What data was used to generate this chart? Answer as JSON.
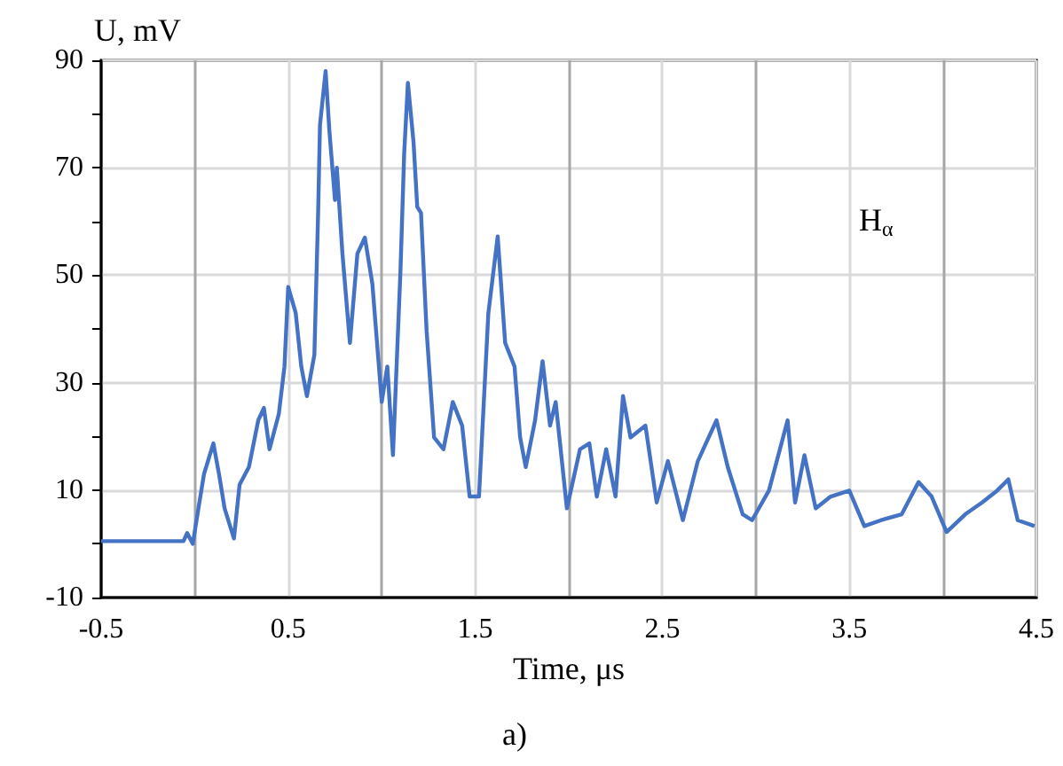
{
  "chart_data": {
    "type": "line",
    "xlabel": "Time, μs",
    "ylabel": "U, mV",
    "annotations": [
      "H$_{α}$",
      "a)"
    ],
    "xlim": [
      -0.5,
      4.5
    ],
    "xticks": [
      -0.5,
      {
        "value": 0,
        "label": null
      },
      0.5,
      {
        "value": 1,
        "label": null
      },
      1.5,
      {
        "value": 2,
        "label": null
      },
      2.5,
      {
        "value": 3,
        "label": null
      },
      3.5,
      {
        "value": 4,
        "label": null
      },
      4.5
    ],
    "ylim": [
      -10,
      90
    ],
    "yticks": [
      -10,
      {
        "value": 0,
        "label": null
      },
      10,
      {
        "value": 20,
        "label": null
      },
      30,
      {
        "value": 40,
        "label": null
      },
      50,
      {
        "value": 60,
        "label": null
      },
      70,
      {
        "value": 80,
        "label": null
      },
      90
    ],
    "grid": true,
    "marker": "none",
    "line_style": "solid",
    "series": [
      {
        "color": "#4472c4",
        "x": [
          -0.5,
          -0.06,
          -0.04,
          -0.01,
          0.02,
          0.05,
          0.1,
          0.13,
          0.16,
          0.21,
          0.24,
          0.29,
          0.34,
          0.37,
          0.4,
          0.45,
          0.48,
          0.5,
          0.54,
          0.57,
          0.6,
          0.64,
          0.66,
          0.67,
          0.7,
          0.72,
          0.75,
          0.76,
          0.79,
          0.83,
          0.87,
          0.91,
          0.95,
          1.0,
          1.03,
          1.06,
          1.1,
          1.12,
          1.14,
          1.17,
          1.19,
          1.21,
          1.24,
          1.28,
          1.33,
          1.38,
          1.43,
          1.47,
          1.52,
          1.57,
          1.62,
          1.66,
          1.71,
          1.74,
          1.77,
          1.82,
          1.86,
          1.9,
          1.93,
          1.99,
          2.06,
          2.11,
          2.15,
          2.2,
          2.25,
          2.29,
          2.33,
          2.41,
          2.47,
          2.53,
          2.61,
          2.69,
          2.79,
          2.85,
          2.93,
          2.98,
          3.07,
          3.17,
          3.21,
          3.26,
          3.32,
          3.4,
          3.5,
          3.58,
          3.67,
          3.78,
          3.87,
          3.94,
          4.02,
          4.12,
          4.21,
          4.29,
          4.35,
          4.4,
          4.49
        ],
        "values": [
          0.5,
          0.5,
          2,
          0,
          6.6,
          13,
          18.7,
          13,
          6.6,
          1,
          11,
          14.3,
          23,
          25.3,
          17.6,
          24.2,
          33,
          47.8,
          43,
          33,
          27.5,
          35.2,
          61.6,
          78,
          88,
          77,
          64,
          70,
          54,
          37.4,
          54,
          57,
          48.4,
          26.4,
          33,
          16.5,
          50.6,
          72.6,
          85.8,
          74.8,
          62.7,
          61.6,
          39.6,
          19.8,
          17.6,
          26.4,
          22,
          8.8,
          8.8,
          42.9,
          57.2,
          37.4,
          33,
          19.8,
          14.3,
          23,
          34,
          22,
          26.4,
          6.6,
          17.6,
          18.7,
          8.8,
          17.6,
          8.8,
          27.5,
          19.8,
          22,
          7.7,
          15.4,
          4.4,
          15.4,
          23,
          14.3,
          5.5,
          4.4,
          9.9,
          23,
          7.7,
          16.5,
          6.6,
          8.8,
          9.9,
          3.3,
          4.4,
          5.5,
          11.5,
          8.8,
          2.2,
          5.5,
          7.7,
          9.9,
          12,
          4.4,
          3.3
        ]
      }
    ]
  }
}
